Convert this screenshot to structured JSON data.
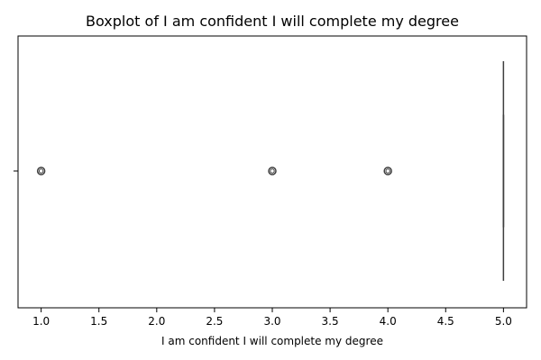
{
  "chart_data": {
    "type": "boxplot",
    "title": "Boxplot of I am confident I will complete my degree",
    "xlabel": "I am confident I will complete my degree",
    "ylabel": "",
    "xlim": [
      0.8,
      5.2
    ],
    "x_ticks": [
      1.0,
      1.5,
      2.0,
      2.5,
      3.0,
      3.5,
      4.0,
      4.5,
      5.0
    ],
    "x_tick_labels": [
      "1.0",
      "1.5",
      "2.0",
      "2.5",
      "3.0",
      "3.5",
      "4.0",
      "4.5",
      "5.0"
    ],
    "grid": false,
    "legend": "none",
    "box": {
      "min": 5.0,
      "q1": 5.0,
      "median": 5.0,
      "q3": 5.0,
      "max": 5.0
    },
    "outliers": [
      1.0,
      3.0,
      4.0
    ],
    "colors": {
      "box_line": "#3f3f3f",
      "axis": "#000000"
    }
  }
}
